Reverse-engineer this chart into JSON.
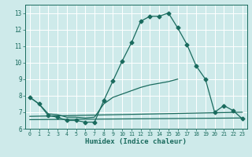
{
  "xlabel": "Humidex (Indice chaleur)",
  "background_color": "#ceeaea",
  "grid_color": "#b8d8d8",
  "line_color": "#1a6b5e",
  "xlim": [
    -0.5,
    23.5
  ],
  "ylim": [
    6,
    13.5
  ],
  "yticks": [
    6,
    7,
    8,
    9,
    10,
    11,
    12,
    13
  ],
  "xticks": [
    0,
    1,
    2,
    3,
    4,
    5,
    6,
    7,
    8,
    9,
    10,
    11,
    12,
    13,
    14,
    15,
    16,
    17,
    18,
    19,
    20,
    21,
    22,
    23
  ],
  "series": [
    {
      "x": [
        0,
        1,
        2,
        3,
        4,
        5,
        6,
        7,
        8,
        9,
        10,
        11,
        12,
        13,
        14,
        15,
        16,
        17,
        18,
        19,
        20,
        21,
        22,
        23
      ],
      "y": [
        7.9,
        7.5,
        6.8,
        6.7,
        6.5,
        6.5,
        6.4,
        6.4,
        7.7,
        8.9,
        10.1,
        11.2,
        12.5,
        12.8,
        12.8,
        13.0,
        12.1,
        11.1,
        9.8,
        9.0,
        7.0,
        7.4,
        7.1,
        6.6
      ],
      "marker": "D",
      "markersize": 2.5
    },
    {
      "x": [
        0,
        1,
        2,
        3,
        4,
        5,
        6,
        7,
        8,
        9,
        10,
        11,
        12,
        13,
        14,
        15,
        16,
        17,
        18,
        19,
        20,
        21,
        22,
        23
      ],
      "y": [
        7.9,
        7.5,
        6.9,
        6.85,
        6.7,
        6.7,
        6.65,
        6.7,
        7.5,
        7.9,
        8.1,
        8.3,
        8.5,
        8.65,
        8.75,
        8.85,
        9.0,
        null,
        null,
        null,
        null,
        null,
        null,
        null
      ],
      "marker": null,
      "markersize": 0
    },
    {
      "x": [
        0,
        23
      ],
      "y": [
        6.75,
        7.0
      ],
      "marker": null,
      "markersize": 0
    },
    {
      "x": [
        0,
        23
      ],
      "y": [
        6.55,
        6.65
      ],
      "marker": null,
      "markersize": 0
    }
  ]
}
